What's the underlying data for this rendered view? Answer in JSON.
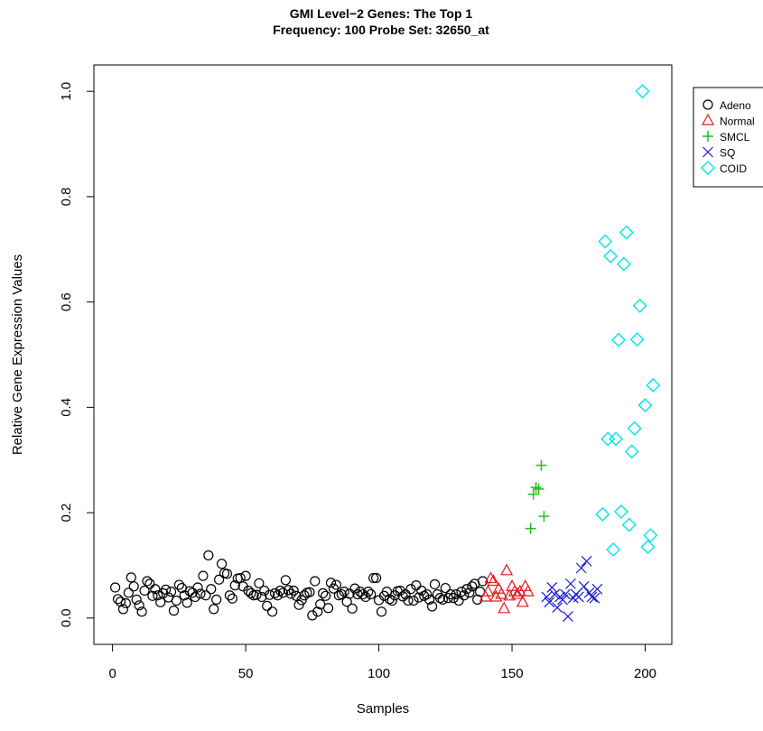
{
  "chart_data": {
    "type": "scatter",
    "title_line1": "GMI Level−2 Genes: The Top 1",
    "title_line2": "Frequency: 100  Probe Set: 32650_at",
    "xlabel": "Samples",
    "ylabel": "Relative Gene Expression Values",
    "xlim": [
      -7,
      210
    ],
    "ylim": [
      -0.05,
      1.05
    ],
    "xticks": [
      0,
      50,
      100,
      150,
      200
    ],
    "yticks": [
      0.0,
      0.2,
      0.4,
      0.6,
      0.8,
      1.0
    ],
    "xtick_labels": [
      "0",
      "50",
      "100",
      "150",
      "200"
    ],
    "ytick_labels": [
      "0.0",
      "0.2",
      "0.4",
      "0.6",
      "0.8",
      "1.0"
    ],
    "legend_position": "top-right",
    "grid": false,
    "series": [
      {
        "name": "Adeno",
        "marker": "circle",
        "color": "#000000",
        "x": [
          1,
          2,
          3,
          4,
          5,
          6,
          7,
          8,
          9,
          10,
          11,
          12,
          13,
          14,
          15,
          16,
          17,
          18,
          19,
          20,
          21,
          22,
          23,
          24,
          25,
          26,
          27,
          28,
          29,
          30,
          31,
          32,
          33,
          34,
          35,
          36,
          37,
          38,
          39,
          40,
          41,
          42,
          43,
          44,
          45,
          46,
          47,
          48,
          49,
          50,
          51,
          52,
          53,
          54,
          55,
          56,
          57,
          58,
          59,
          60,
          61,
          62,
          63,
          64,
          65,
          66,
          67,
          68,
          69,
          70,
          71,
          72,
          73,
          74,
          75,
          76,
          77,
          78,
          79,
          80,
          81,
          82,
          83,
          84,
          85,
          86,
          87,
          88,
          89,
          90,
          91,
          92,
          93,
          94,
          95,
          96,
          97,
          98,
          99,
          100,
          101,
          102,
          103,
          104,
          105,
          106,
          107,
          108,
          109,
          110,
          111,
          112,
          113,
          114,
          115,
          116,
          117,
          118,
          119,
          120,
          121,
          122,
          123,
          124,
          125,
          126,
          127,
          128,
          129,
          130,
          131,
          132,
          133,
          134,
          135,
          136,
          137,
          138,
          139
        ],
        "y": [
          0.058,
          0.036,
          0.031,
          0.017,
          0.028,
          0.048,
          0.077,
          0.06,
          0.035,
          0.024,
          0.012,
          0.052,
          0.07,
          0.065,
          0.042,
          0.055,
          0.043,
          0.03,
          0.047,
          0.054,
          0.039,
          0.05,
          0.014,
          0.033,
          0.063,
          0.057,
          0.043,
          0.029,
          0.051,
          0.048,
          0.04,
          0.058,
          0.046,
          0.08,
          0.043,
          0.119,
          0.055,
          0.017,
          0.035,
          0.073,
          0.103,
          0.085,
          0.084,
          0.043,
          0.037,
          0.062,
          0.075,
          0.076,
          0.06,
          0.08,
          0.052,
          0.047,
          0.043,
          0.044,
          0.066,
          0.04,
          0.052,
          0.023,
          0.044,
          0.012,
          0.047,
          0.043,
          0.052,
          0.048,
          0.072,
          0.053,
          0.046,
          0.052,
          0.042,
          0.025,
          0.034,
          0.043,
          0.048,
          0.049,
          0.005,
          0.07,
          0.012,
          0.026,
          0.047,
          0.042,
          0.019,
          0.067,
          0.056,
          0.063,
          0.043,
          0.045,
          0.05,
          0.031,
          0.046,
          0.018,
          0.056,
          0.045,
          0.05,
          0.045,
          0.04,
          0.05,
          0.045,
          0.076,
          0.076,
          0.034,
          0.012,
          0.042,
          0.05,
          0.036,
          0.033,
          0.043,
          0.051,
          0.052,
          0.041,
          0.045,
          0.033,
          0.055,
          0.033,
          0.062,
          0.039,
          0.052,
          0.042,
          0.045,
          0.035,
          0.022,
          0.064,
          0.045,
          0.038,
          0.035,
          0.057,
          0.038,
          0.045,
          0.038,
          0.045,
          0.033,
          0.05,
          0.043,
          0.055,
          0.048,
          0.06,
          0.065,
          0.035,
          0.05,
          0.07
        ]
      },
      {
        "name": "Normal",
        "marker": "triangle",
        "color": "#e41a1c",
        "x": [
          140,
          141,
          142,
          143,
          144,
          145,
          146,
          147,
          148,
          149,
          150,
          151,
          152,
          153,
          154,
          155,
          156
        ],
        "y": [
          0.04,
          0.05,
          0.075,
          0.07,
          0.04,
          0.055,
          0.045,
          0.018,
          0.09,
          0.042,
          0.06,
          0.05,
          0.045,
          0.05,
          0.03,
          0.06,
          0.05
        ]
      },
      {
        "name": "SMCL",
        "marker": "plus",
        "color": "#1fbf1f",
        "x": [
          157,
          158,
          159,
          160,
          161,
          162
        ],
        "y": [
          0.17,
          0.235,
          0.248,
          0.245,
          0.29,
          0.193
        ]
      },
      {
        "name": "SQ",
        "marker": "x",
        "color": "#1a1acd",
        "x": [
          163,
          164,
          165,
          166,
          167,
          168,
          169,
          170,
          171,
          172,
          173,
          174,
          175,
          176,
          177,
          178,
          179,
          180,
          181,
          182
        ],
        "y": [
          0.04,
          0.03,
          0.058,
          0.045,
          0.02,
          0.04,
          0.035,
          0.045,
          0.003,
          0.065,
          0.038,
          0.045,
          0.04,
          0.095,
          0.06,
          0.108,
          0.048,
          0.04,
          0.038,
          0.055
        ]
      },
      {
        "name": "COID",
        "marker": "diamond",
        "color": "#00e5ee",
        "x": [
          184,
          185,
          186,
          187,
          188,
          189,
          190,
          191,
          192,
          193,
          194,
          195,
          196,
          197,
          198,
          199,
          200,
          201,
          202,
          203
        ],
        "y": [
          0.197,
          0.715,
          0.34,
          0.687,
          0.13,
          0.34,
          0.528,
          0.202,
          0.672,
          0.732,
          0.177,
          0.316,
          0.36,
          0.529,
          0.593,
          1.0,
          0.404,
          0.135,
          0.157,
          0.442
        ]
      }
    ]
  }
}
